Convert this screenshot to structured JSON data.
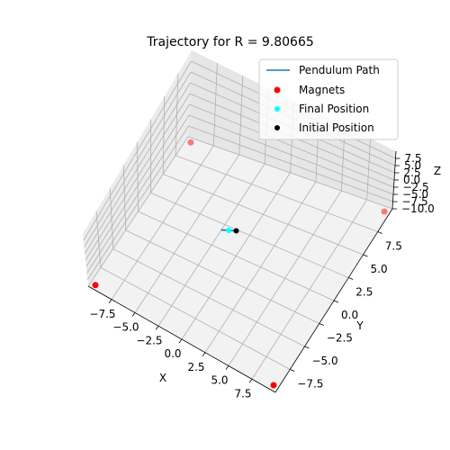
{
  "chart_data": {
    "type": "line3d",
    "title": "Trajectory for R = 9.80665",
    "xlabel": "X",
    "ylabel": "Y",
    "zlabel": "Z",
    "xlim": [
      -10,
      10
    ],
    "ylim": [
      -10,
      10
    ],
    "zlim": [
      -10,
      10
    ],
    "x_ticks": [
      "−7.5",
      "−5.0",
      "−2.5",
      "0.0",
      "2.5",
      "5.0",
      "7.5"
    ],
    "y_ticks": [
      "−7.5",
      "−5.0",
      "−2.5",
      "0.0",
      "2.5",
      "5.0",
      "7.5"
    ],
    "z_ticks": [
      "−10.0",
      "−7.5",
      "−5.0",
      "−2.5",
      "0.0",
      "2.5",
      "5.0",
      "7.5"
    ],
    "grid": true,
    "legend_position": "top-right",
    "legend": [
      "Pendulum Path",
      "Magnets",
      "Final Position",
      "Initial Position"
    ],
    "series": [
      {
        "name": "Pendulum Path",
        "kind": "line",
        "color": "#1f77b4",
        "points": [
          [
            -1.2,
            -0.6,
            0
          ],
          [
            -0.6,
            -0.3,
            0
          ],
          [
            0.0,
            0.0,
            0
          ]
        ]
      },
      {
        "name": "Magnets",
        "kind": "scatter",
        "color": "#ff0000",
        "points": [
          [
            -9.5,
            9.5,
            -10
          ],
          [
            9.5,
            -9.5,
            -10
          ],
          [
            -9.5,
            -9.5,
            -10
          ],
          [
            9.5,
            9.5,
            -10
          ]
        ]
      },
      {
        "name": "Final Position",
        "kind": "scatter",
        "color": "#00ffff",
        "points": [
          [
            -0.6,
            -0.3,
            0
          ]
        ]
      },
      {
        "name": "Initial Position",
        "kind": "scatter",
        "color": "#000000",
        "points": [
          [
            0.0,
            0.0,
            0
          ]
        ]
      }
    ]
  }
}
